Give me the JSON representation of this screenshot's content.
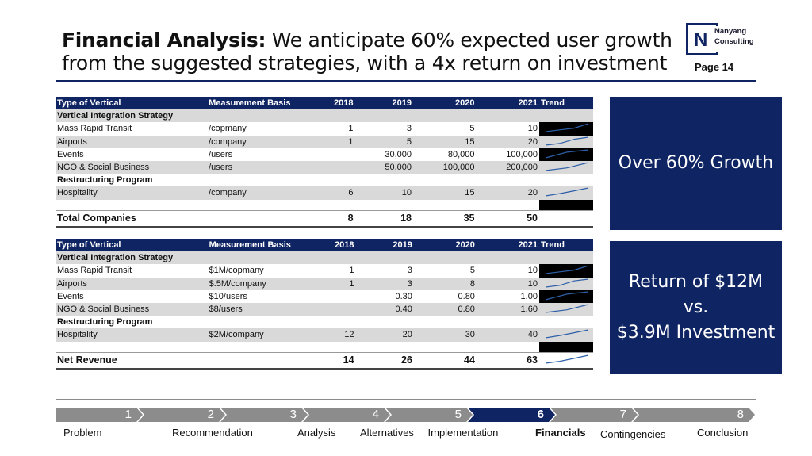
{
  "header": {
    "title_bold": "Financial Analysis:",
    "title_rest": " We anticipate 60% expected user growth from the suggested strategies, with a 4x return on investment",
    "page": "Page 14",
    "logo_letter": "N",
    "logo_line1": "Nanyang",
    "logo_line2": "Consulting"
  },
  "table_users": {
    "columns": [
      "Type of Vertical",
      "Measurement Basis",
      "2018",
      "2019",
      "2020",
      "2021",
      "Trend"
    ],
    "rows": [
      {
        "kind": "section",
        "label": "Vertical Integration Strategy",
        "basis": "",
        "v": [
          "",
          "",
          "",
          ""
        ]
      },
      {
        "kind": "data",
        "label": "Mass Rapid Transit",
        "basis": "/copmany",
        "v": [
          "1",
          "3",
          "5",
          "10"
        ],
        "trend": [
          1,
          3,
          5,
          10
        ]
      },
      {
        "kind": "data",
        "label": "Airports",
        "basis": "/company",
        "v": [
          "1",
          "5",
          "15",
          "20"
        ],
        "trend": [
          1,
          5,
          15,
          20
        ]
      },
      {
        "kind": "data",
        "label": "Events",
        "basis": "/users",
        "v": [
          "",
          "30,000",
          "80,000",
          "100,000"
        ],
        "trend": [
          30000,
          80000,
          100000
        ]
      },
      {
        "kind": "data",
        "label": "NGO & Social Business",
        "basis": "/users",
        "v": [
          "",
          "50,000",
          "100,000",
          "200,000"
        ],
        "trend": [
          50000,
          100000,
          200000
        ]
      },
      {
        "kind": "section",
        "label": "Restructuring Program",
        "basis": "",
        "v": [
          "",
          "",
          "",
          ""
        ]
      },
      {
        "kind": "data",
        "label": "Hospitality",
        "basis": "/company",
        "v": [
          "6",
          "10",
          "15",
          "20"
        ],
        "trend": [
          6,
          10,
          15,
          20
        ]
      }
    ],
    "total": {
      "label": "Total Companies",
      "v": [
        "8",
        "18",
        "35",
        "50"
      ]
    }
  },
  "table_revenue": {
    "columns": [
      "Type of Vertical",
      "Measurement Basis",
      "2018",
      "2019",
      "2020",
      "2021",
      "Trend"
    ],
    "rows": [
      {
        "kind": "section",
        "label": "Vertical Integration Strategy",
        "basis": "",
        "v": [
          "",
          "",
          "",
          ""
        ]
      },
      {
        "kind": "data",
        "label": "Mass Rapid Transit",
        "basis": "$1M/copmany",
        "v": [
          "1",
          "3",
          "5",
          "10"
        ],
        "trend": [
          1,
          3,
          5,
          10
        ]
      },
      {
        "kind": "data",
        "label": "Airports",
        "basis": "$.5M/company",
        "v": [
          "1",
          "3",
          "8",
          "10"
        ],
        "trend": [
          1,
          3,
          8,
          10
        ]
      },
      {
        "kind": "data",
        "label": "Events",
        "basis": "$10/users",
        "v": [
          "",
          "0.30",
          "0.80",
          "1.00"
        ],
        "trend": [
          0.3,
          0.8,
          1.0
        ]
      },
      {
        "kind": "data",
        "label": "NGO & Social Business",
        "basis": "$8/users",
        "v": [
          "",
          "0.40",
          "0.80",
          "1.60"
        ],
        "trend": [
          0.4,
          0.8,
          1.6
        ]
      },
      {
        "kind": "section",
        "label": "Restructuring Program",
        "basis": "",
        "v": [
          "",
          "",
          "",
          ""
        ]
      },
      {
        "kind": "data",
        "label": "Hospitality",
        "basis": "$2M/company",
        "v": [
          "12",
          "20",
          "30",
          "40"
        ],
        "trend": [
          12,
          20,
          30,
          40
        ]
      }
    ],
    "total": {
      "label": "Net Revenue",
      "v": [
        "14",
        "26",
        "44",
        "63"
      ],
      "trend": [
        14,
        26,
        44,
        63
      ]
    }
  },
  "kpi_growth": {
    "text": "Over 60% Growth"
  },
  "kpi_return": {
    "line1": "Return of $12M",
    "line2": "vs.",
    "line3": "$3.9M Investment"
  },
  "nav": {
    "active": 6,
    "colors": {
      "inactive": "#8c8c8c",
      "active": "#0f2463"
    },
    "steps": [
      {
        "num": "1",
        "label": "Problem"
      },
      {
        "num": "2",
        "label": "Recommendation"
      },
      {
        "num": "3",
        "label": "Analysis"
      },
      {
        "num": "4",
        "label": "Alternatives"
      },
      {
        "num": "5",
        "label": "Implementation"
      },
      {
        "num": "6",
        "label": "Financials"
      },
      {
        "num": "7",
        "label": "Contingencies"
      },
      {
        "num": "8",
        "label": "Conclusion"
      }
    ]
  },
  "colors": {
    "navy": "#0f2463",
    "shade": "#d9d9d9",
    "spark": "#2e5fa8"
  }
}
